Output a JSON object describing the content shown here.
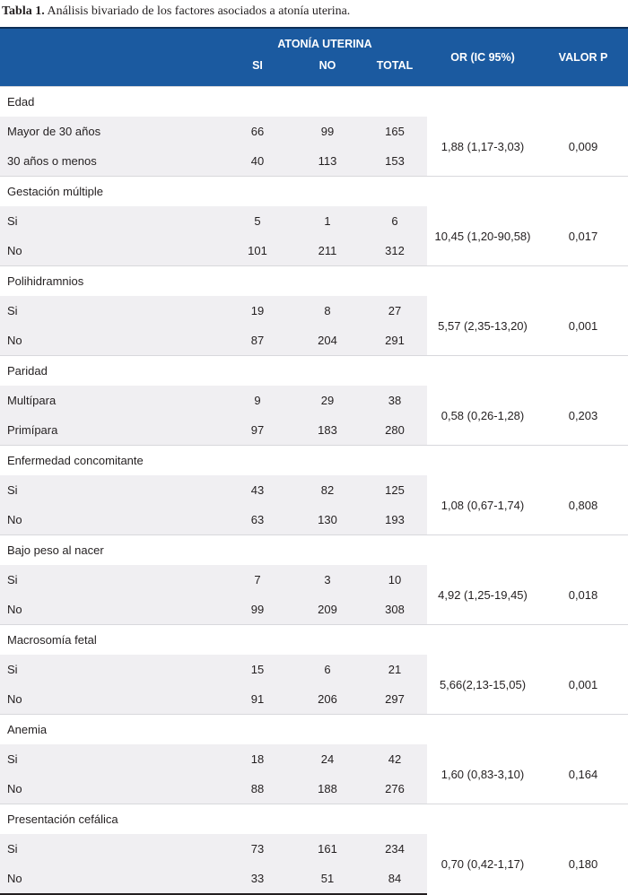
{
  "caption": {
    "label": "Tabla 1.",
    "text": "Análisis bivariado de los factores asociados a atonía uterina."
  },
  "header": {
    "group": "ATONÍA UTERINA",
    "si": "SI",
    "no": "NO",
    "total": "TOTAL",
    "or": "OR (IC 95%)",
    "p": "VALOR P"
  },
  "rows": [
    {
      "factor": "Edad",
      "or": "1,88 (1,17-3,03)",
      "p": "0,009",
      "a": {
        "label": "Mayor de 30 años",
        "si": "66",
        "no": "99",
        "total": "165"
      },
      "b": {
        "label": "30 años o menos",
        "si": "40",
        "no": "113",
        "total": "153"
      }
    },
    {
      "factor": "Gestación múltiple",
      "or": "10,45 (1,20-90,58)",
      "p": "0,017",
      "a": {
        "label": "Si",
        "si": "5",
        "no": "1",
        "total": "6"
      },
      "b": {
        "label": "No",
        "si": "101",
        "no": "211",
        "total": "312"
      }
    },
    {
      "factor": "Polihidramnios",
      "or": "5,57 (2,35-13,20)",
      "p": "0,001",
      "a": {
        "label": "Si",
        "si": "19",
        "no": "8",
        "total": "27"
      },
      "b": {
        "label": "No",
        "si": "87",
        "no": "204",
        "total": "291"
      }
    },
    {
      "factor": "Paridad",
      "or": "0,58 (0,26-1,28)",
      "p": "0,203",
      "a": {
        "label": "Multípara",
        "si": "9",
        "no": "29",
        "total": "38"
      },
      "b": {
        "label": "Primípara",
        "si": "97",
        "no": "183",
        "total": "280"
      }
    },
    {
      "factor": "Enfermedad concomitante",
      "or": "1,08 (0,67-1,74)",
      "p": "0,808",
      "a": {
        "label": "Si",
        "si": "43",
        "no": "82",
        "total": "125"
      },
      "b": {
        "label": "No",
        "si": "63",
        "no": "130",
        "total": "193"
      }
    },
    {
      "factor": "Bajo peso al nacer",
      "or": "4,92 (1,25-19,45)",
      "p": "0,018",
      "a": {
        "label": "Si",
        "si": "7",
        "no": "3",
        "total": "10"
      },
      "b": {
        "label": "No",
        "si": "99",
        "no": "209",
        "total": "308"
      }
    },
    {
      "factor": "Macrosomía fetal",
      "or": "5,66(2,13-15,05)",
      "p": "0,001",
      "a": {
        "label": "Si",
        "si": "15",
        "no": "6",
        "total": "21"
      },
      "b": {
        "label": "No",
        "si": "91",
        "no": "206",
        "total": "297"
      }
    },
    {
      "factor": "Anemia",
      "or": "1,60 (0,83-3,10)",
      "p": "0,164",
      "a": {
        "label": "Si",
        "si": "18",
        "no": "24",
        "total": "42"
      },
      "b": {
        "label": "No",
        "si": "88",
        "no": "188",
        "total": "276"
      }
    },
    {
      "factor": "Presentación cefálica",
      "or": "0,70 (0,42-1,17)",
      "p": "0,180",
      "a": {
        "label": "Si",
        "si": "73",
        "no": "161",
        "total": "234"
      },
      "b": {
        "label": "No",
        "si": "33",
        "no": "51",
        "total": "84"
      }
    }
  ],
  "colors": {
    "header_bg": "#1b5aa0",
    "band_bg": "#f0eff2",
    "text": "#231f20"
  }
}
